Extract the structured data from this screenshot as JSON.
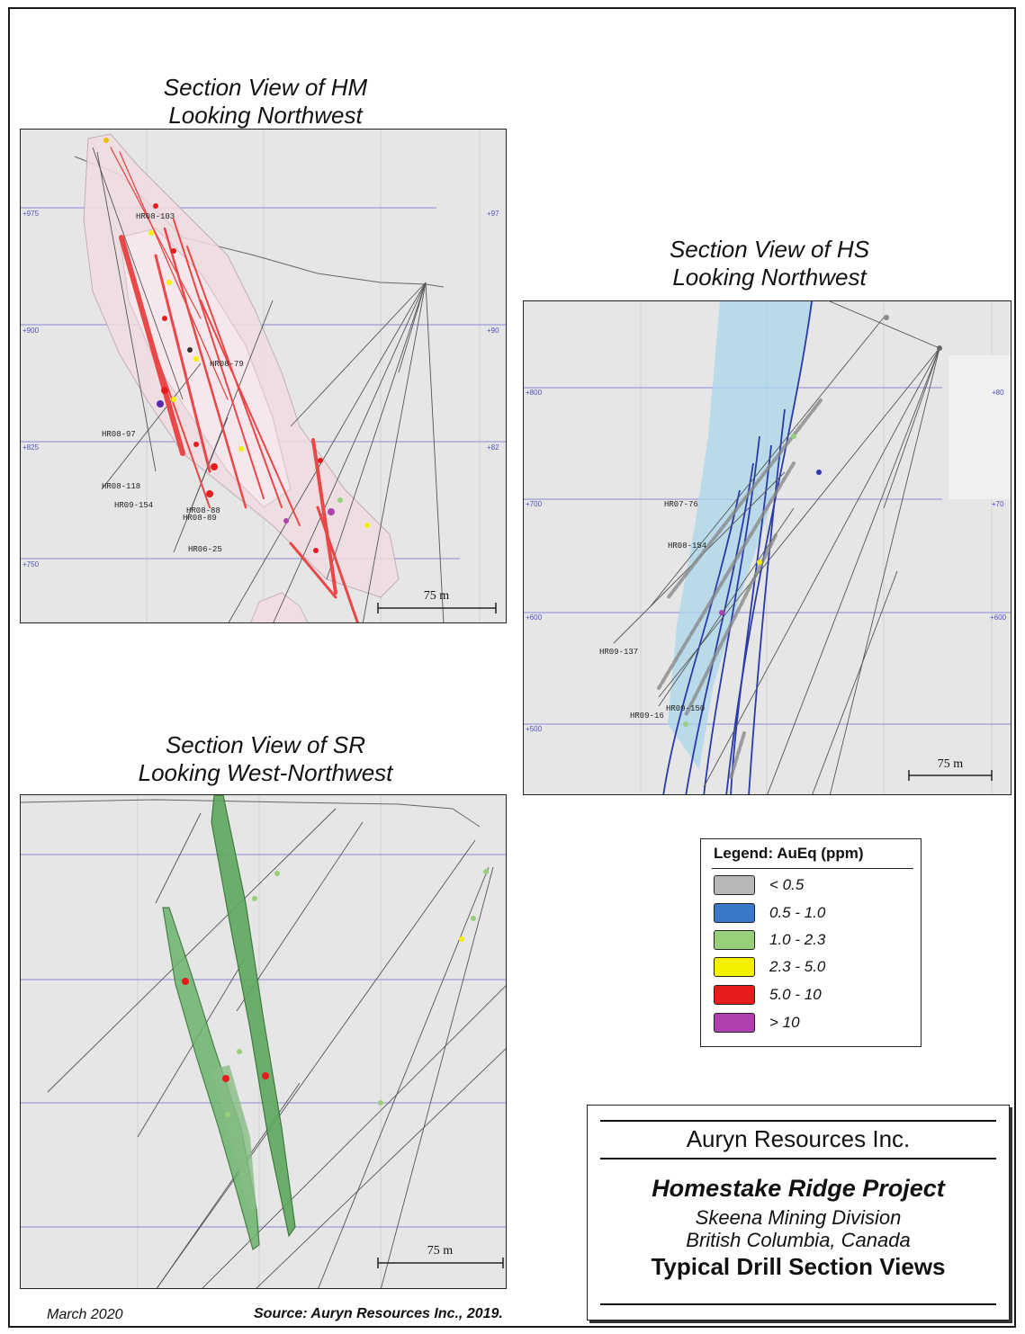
{
  "captions": {
    "hm": [
      "Section View of HM",
      "Looking Northwest"
    ],
    "hs": [
      "Section View of HS",
      "Looking Northwest"
    ],
    "sr": [
      "Section View of SR",
      "Looking West-Northwest"
    ]
  },
  "panels": {
    "hm": {
      "elevations_left": [
        "+975",
        "+900",
        "+825",
        "+750"
      ],
      "elevations_right": [
        "+97",
        "+90",
        "+82"
      ],
      "hole_labels": [
        "HR08-79",
        "HR08-97",
        "HR08-118",
        "HR09-154",
        "HR08-88",
        "HR08-89",
        "HR06-25",
        "HR08-103"
      ],
      "scale": "75 m"
    },
    "hs": {
      "elevations_left": [
        "+800",
        "+700",
        "+600",
        "+500"
      ],
      "elevations_right": [
        "+80",
        "+70",
        "+600"
      ],
      "hole_labels": [
        "HR07-76",
        "HR08-154",
        "HR09-137",
        "HR09-150",
        "HR09-16"
      ],
      "scale": "75 m"
    },
    "sr": {
      "scale": "75 m"
    }
  },
  "legend": {
    "title": "Legend: AuEq (ppm)",
    "items": [
      {
        "label": "< 0.5",
        "color": "#b8b8b8"
      },
      {
        "label": "0.5 - 1.0",
        "color": "#3a78c8"
      },
      {
        "label": "1.0 - 2.3",
        "color": "#98d07a"
      },
      {
        "label": "2.3 - 5.0",
        "color": "#f4f000"
      },
      {
        "label": "5.0 - 10",
        "color": "#e61c1c"
      },
      {
        "label": "> 10",
        "color": "#b040b0"
      }
    ]
  },
  "titlebox": {
    "company": "Auryn Resources Inc.",
    "project": "Homestake Ridge Project",
    "division": "Skeena Mining Division",
    "location": "British Columbia, Canada",
    "subtitle": "Typical Drill Section Views"
  },
  "footer": {
    "date": "March 2020",
    "source_prefix": "Source: ",
    "source": "Auryn Resources Inc., 2019."
  }
}
